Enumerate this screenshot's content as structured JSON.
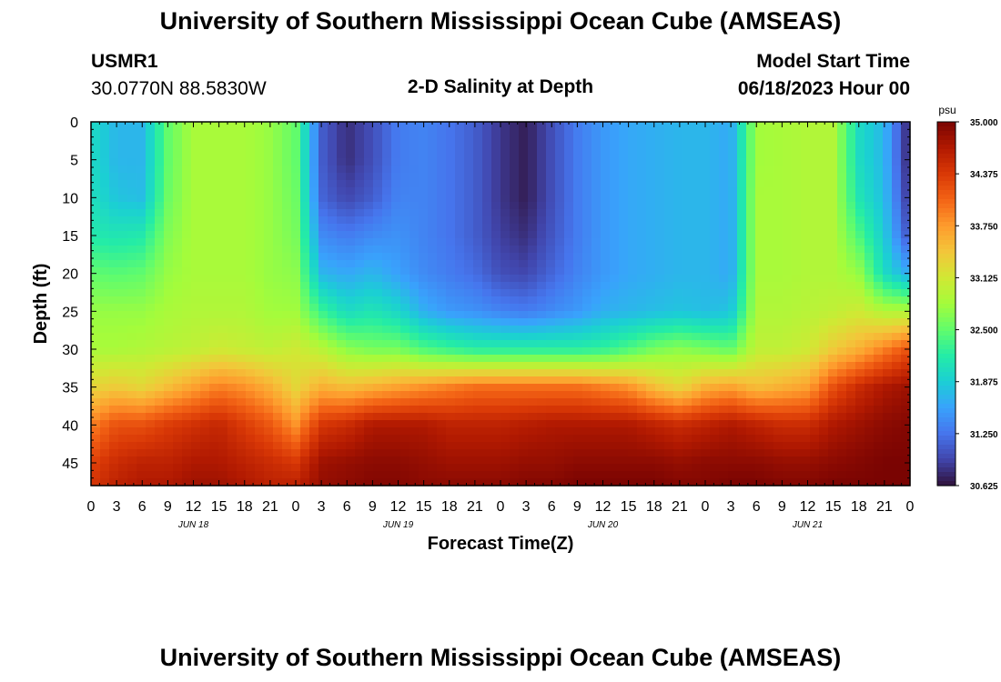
{
  "header": {
    "title": "University of Southern Mississippi Ocean Cube (AMSEAS)",
    "station_id": "USMR1",
    "station_coords": "30.0770N  88.5830W",
    "plot_title": "2-D Salinity at Depth",
    "model_start_label": "Model Start Time",
    "model_start_value": "06/18/2023 Hour 00"
  },
  "footer": {
    "title": "University of Southern Mississippi Ocean Cube (AMSEAS)"
  },
  "colors": {
    "colormap": [
      "#30123b",
      "#4145ab",
      "#4675ed",
      "#39a2fc",
      "#1bcfd4",
      "#24eca6",
      "#61fc6c",
      "#a4fc3b",
      "#d1e834",
      "#f3c63a",
      "#fe9b2d",
      "#f36315",
      "#d93806",
      "#b11901",
      "#7a0402"
    ]
  },
  "chart_data": {
    "type": "heatmap",
    "title": "2-D Salinity at Depth",
    "xlabel": "Forecast Time(Z)",
    "ylabel": "Depth (ft)",
    "x_tick_labels": [
      "0",
      "3",
      "6",
      "9",
      "12",
      "15",
      "18",
      "21",
      "0",
      "3",
      "6",
      "9",
      "12",
      "15",
      "18",
      "21",
      "0",
      "3",
      "6",
      "9",
      "12",
      "15",
      "18",
      "21",
      "0",
      "3",
      "6",
      "9",
      "12",
      "15",
      "18",
      "21",
      "0"
    ],
    "x_range_hours": [
      0,
      96
    ],
    "x_tick_step_hours": 3,
    "day_labels": [
      {
        "label": "JUN 18",
        "hour": 12
      },
      {
        "label": "JUN 19",
        "hour": 36
      },
      {
        "label": "JUN 20",
        "hour": 60
      },
      {
        "label": "JUN 21",
        "hour": 84
      }
    ],
    "y_range_ft": [
      0,
      48
    ],
    "y_ticks": [
      0,
      5,
      10,
      15,
      20,
      25,
      30,
      35,
      40,
      45
    ],
    "colorbar": {
      "unit": "psu",
      "min": 30.625,
      "max": 35.0,
      "ticks": [
        "35.000",
        "34.375",
        "33.750",
        "33.125",
        "32.500",
        "31.875",
        "31.250",
        "30.625"
      ]
    },
    "profile_hours": [
      0,
      3,
      6,
      9,
      12,
      15,
      18,
      21,
      24,
      27,
      30,
      33,
      36,
      39,
      42,
      45,
      48,
      51,
      54,
      57,
      60,
      63,
      66,
      69,
      72,
      75,
      78,
      81,
      84,
      87,
      90,
      93,
      96
    ],
    "profile_depths_ft": [
      0,
      5,
      10,
      15,
      20,
      25,
      30,
      35,
      40,
      45,
      48
    ],
    "salinity_psu": [
      [
        32.0,
        32.0,
        32.05,
        32.15,
        32.5,
        32.75,
        32.85,
        33.3,
        33.9,
        34.3,
        34.4
      ],
      [
        31.7,
        31.7,
        31.8,
        32.1,
        32.45,
        32.75,
        32.85,
        33.4,
        34.2,
        34.5,
        34.6
      ],
      [
        31.7,
        31.7,
        31.75,
        32.15,
        32.5,
        32.75,
        32.9,
        33.3,
        34.2,
        34.6,
        34.7
      ],
      [
        32.5,
        32.5,
        32.55,
        32.65,
        32.75,
        32.85,
        32.95,
        33.5,
        34.35,
        34.6,
        34.7
      ],
      [
        32.85,
        32.85,
        32.85,
        32.85,
        32.85,
        32.9,
        33.0,
        33.7,
        34.45,
        34.7,
        34.8
      ],
      [
        32.85,
        32.85,
        32.85,
        32.85,
        32.85,
        32.9,
        33.1,
        33.9,
        34.55,
        34.7,
        34.8
      ],
      [
        32.85,
        32.85,
        32.85,
        32.85,
        32.85,
        32.9,
        33.05,
        33.8,
        34.35,
        34.6,
        34.7
      ],
      [
        32.75,
        32.75,
        32.75,
        32.75,
        32.75,
        32.8,
        33.0,
        33.6,
        34.15,
        34.5,
        34.6
      ],
      [
        32.5,
        32.5,
        32.55,
        32.6,
        32.7,
        32.8,
        33.1,
        33.3,
        33.8,
        34.4,
        34.6
      ],
      [
        31.1,
        31.1,
        31.15,
        31.4,
        31.7,
        32.3,
        32.95,
        33.6,
        34.4,
        34.8,
        34.85
      ],
      [
        30.8,
        30.8,
        30.95,
        31.3,
        31.6,
        32.0,
        32.7,
        33.5,
        34.5,
        34.85,
        34.9
      ],
      [
        31.0,
        31.0,
        31.1,
        31.4,
        31.7,
        32.1,
        32.6,
        33.6,
        34.7,
        34.9,
        34.95
      ],
      [
        31.3,
        31.3,
        31.35,
        31.45,
        31.55,
        31.95,
        32.6,
        33.7,
        34.7,
        34.9,
        34.95
      ],
      [
        31.35,
        31.35,
        31.35,
        31.35,
        31.4,
        31.65,
        32.4,
        33.8,
        34.7,
        34.85,
        34.9
      ],
      [
        31.25,
        31.25,
        31.25,
        31.25,
        31.3,
        31.5,
        32.3,
        33.9,
        34.6,
        34.8,
        34.9
      ],
      [
        31.1,
        31.1,
        31.1,
        31.1,
        31.2,
        31.45,
        32.2,
        34.0,
        34.6,
        34.8,
        34.9
      ],
      [
        30.85,
        30.85,
        30.85,
        30.9,
        31.0,
        31.35,
        32.2,
        34.0,
        34.6,
        34.8,
        34.9
      ],
      [
        30.7,
        30.7,
        30.7,
        30.8,
        30.95,
        31.3,
        32.2,
        34.0,
        34.65,
        34.85,
        34.95
      ],
      [
        31.0,
        31.0,
        31.0,
        31.05,
        31.15,
        31.4,
        32.2,
        34.0,
        34.7,
        34.85,
        34.95
      ],
      [
        31.3,
        31.3,
        31.3,
        31.3,
        31.35,
        31.5,
        32.2,
        34.0,
        34.7,
        34.9,
        35.0
      ],
      [
        31.5,
        31.5,
        31.5,
        31.5,
        31.5,
        31.65,
        32.25,
        33.9,
        34.7,
        34.9,
        35.0
      ],
      [
        31.6,
        31.6,
        31.6,
        31.6,
        31.6,
        31.7,
        32.4,
        33.8,
        34.7,
        34.9,
        35.0
      ],
      [
        31.65,
        31.65,
        31.65,
        31.65,
        31.65,
        31.75,
        32.6,
        33.5,
        34.6,
        34.9,
        35.0
      ],
      [
        31.7,
        31.7,
        31.7,
        31.7,
        31.7,
        31.8,
        32.7,
        33.3,
        34.5,
        34.85,
        34.95
      ],
      [
        31.7,
        31.7,
        31.7,
        31.7,
        31.7,
        31.75,
        32.6,
        33.6,
        34.6,
        34.9,
        34.95
      ],
      [
        31.6,
        31.6,
        31.6,
        31.6,
        31.6,
        31.8,
        32.5,
        33.7,
        34.7,
        34.9,
        35.0
      ],
      [
        32.8,
        32.8,
        32.85,
        32.85,
        32.85,
        32.9,
        33.0,
        33.5,
        34.6,
        34.9,
        35.0
      ],
      [
        32.85,
        32.85,
        32.85,
        32.85,
        32.85,
        32.9,
        33.0,
        33.6,
        34.5,
        34.85,
        34.95
      ],
      [
        32.9,
        32.9,
        32.9,
        32.9,
        32.9,
        32.95,
        33.1,
        33.7,
        34.5,
        34.85,
        34.95
      ],
      [
        32.9,
        32.9,
        32.9,
        32.9,
        32.9,
        33.0,
        33.4,
        34.2,
        34.7,
        34.9,
        35.0
      ],
      [
        32.0,
        32.0,
        32.1,
        32.4,
        32.75,
        33.1,
        33.6,
        34.5,
        34.8,
        34.95,
        35.0
      ],
      [
        31.7,
        31.7,
        31.75,
        31.85,
        32.0,
        32.9,
        33.9,
        34.7,
        34.9,
        35.0,
        35.0
      ],
      [
        30.7,
        30.7,
        30.8,
        31.0,
        31.6,
        32.9,
        34.2,
        34.8,
        34.95,
        35.0,
        35.0
      ]
    ]
  }
}
